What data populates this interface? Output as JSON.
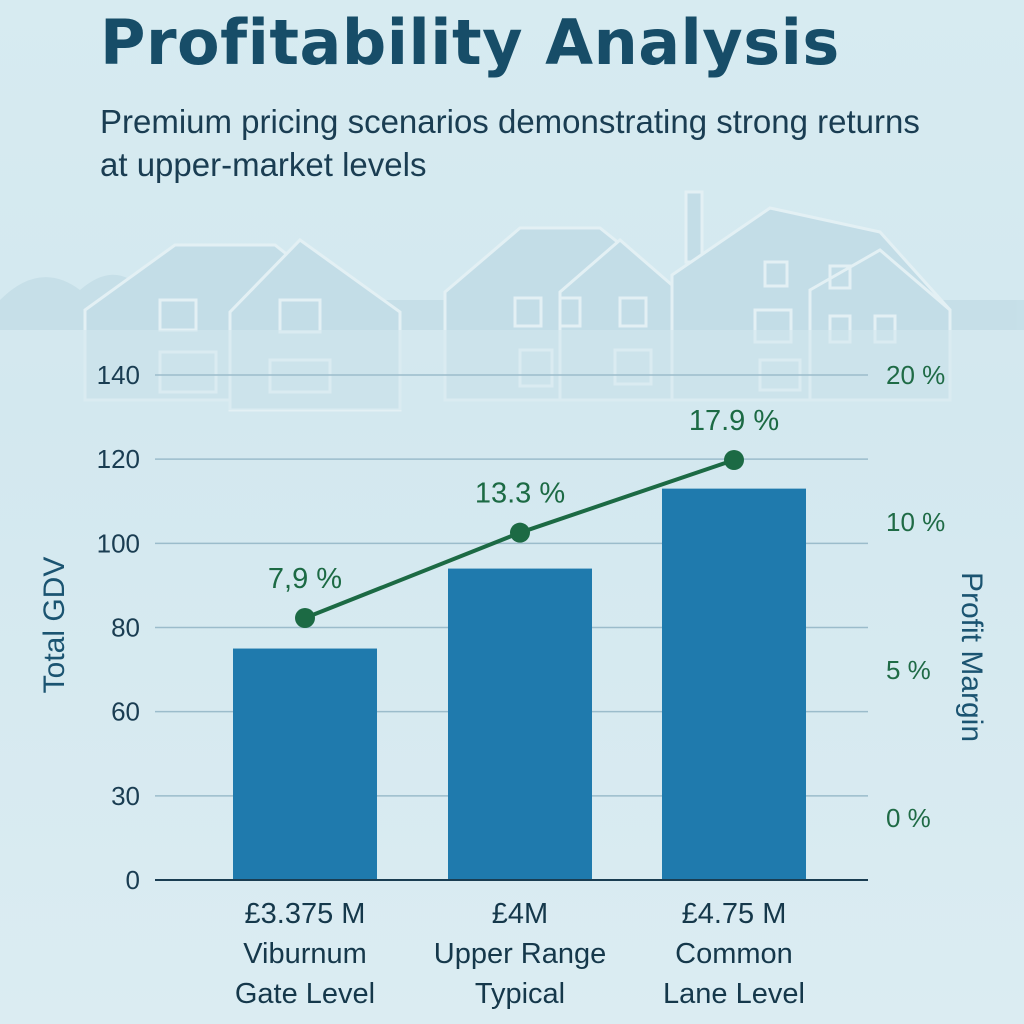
{
  "header": {
    "title": "Profitability Analysis",
    "subtitle": "Premium pricing scenarios demonstrating strong returns at upper-market levels"
  },
  "colors": {
    "bar": "#1f7aad",
    "line": "#1c6a44",
    "grid": "#9bbccb",
    "title": "#174d68",
    "background": "#d7ebf1"
  },
  "chart_data": {
    "type": "bar",
    "title": "Profitability Analysis",
    "subtitle": "Premium pricing scenarios demonstrating strong returns at upper-market levels",
    "ylabel": "Total GDV",
    "y2label": "Profit Margin",
    "yticks": [
      "0",
      "30",
      "60",
      "80",
      "100",
      "120",
      "140"
    ],
    "y2ticks": [
      "0 %",
      "5 %",
      "10 %",
      "20 %"
    ],
    "grid": true,
    "categories": [
      [
        "£3.375 M",
        "Viburnum",
        "Gate Level"
      ],
      [
        "£4M",
        "Upper Range",
        "Typical"
      ],
      [
        "£4.75 M",
        "Common",
        "Lane Level"
      ]
    ],
    "series": [
      {
        "type": "bar",
        "axis": "left",
        "values": [
          75,
          94,
          113
        ]
      },
      {
        "type": "line",
        "axis": "right",
        "values": [
          7.9,
          13.3,
          17.9
        ],
        "labels": [
          "7,9 %",
          "13.3 %",
          "17.9 %"
        ]
      }
    ]
  }
}
